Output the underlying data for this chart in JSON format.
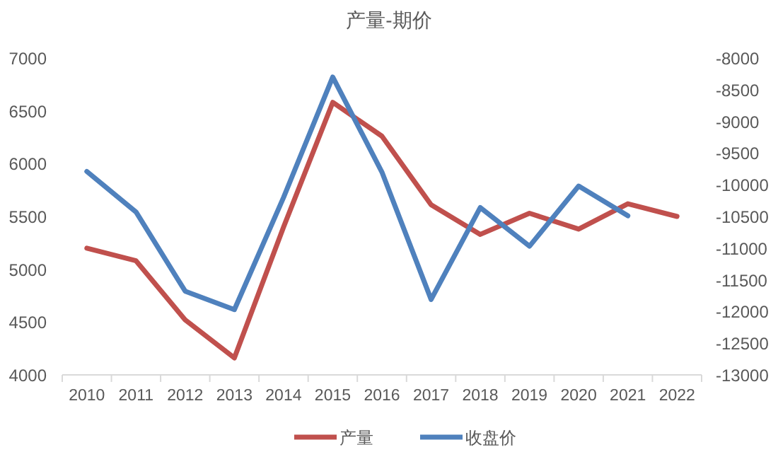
{
  "chart_data": {
    "type": "line",
    "title": "产量-期价",
    "categories": [
      "2010",
      "2011",
      "2012",
      "2013",
      "2014",
      "2015",
      "2016",
      "2017",
      "2018",
      "2019",
      "2020",
      "2021",
      "2022"
    ],
    "series": [
      {
        "name": "产量",
        "color": "#c0504d",
        "values": [
          5200,
          5080,
          4520,
          4160,
          5400,
          6580,
          6260,
          5610,
          5330,
          5530,
          5380,
          5620,
          5500
        ]
      },
      {
        "name": "收盘价",
        "color": "#4f81bd",
        "axis": "y2",
        "values": [
          -9790,
          -10430,
          -11680,
          -11970,
          -10200,
          -8300,
          -9800,
          -11810,
          -10360,
          -10970,
          -10020,
          -10490,
          null
        ]
      }
    ],
    "ylim": [
      4000,
      7000
    ],
    "yticks": [
      4000,
      4500,
      5000,
      5500,
      6000,
      6500,
      7000
    ],
    "y2lim": [
      -13000,
      -8000
    ],
    "y2ticks": [
      -13000,
      -12500,
      -12000,
      -11500,
      -11000,
      -10500,
      -10000,
      -9500,
      -9000,
      -8500,
      -8000
    ],
    "grid": false,
    "legend": "bottom",
    "marker": "none",
    "line_style": "solid"
  }
}
